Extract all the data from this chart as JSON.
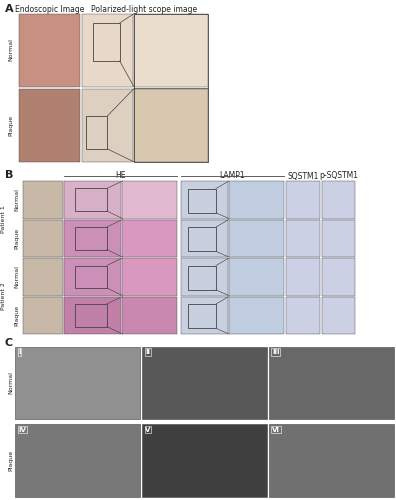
{
  "fig_width": 3.96,
  "fig_height": 5.0,
  "bg_color": "#ffffff",
  "panel_A": {
    "label": "A",
    "col_labels": [
      "Endoscopic Image",
      "Polarized-light scope image"
    ],
    "row_labels": [
      "Normal",
      "Plaque"
    ],
    "endo_normal_color": "#c89080",
    "endo_plaque_color": "#b08070",
    "polar_wide_normal_color": "#e8d8c8",
    "polar_wide_plaque_color": "#ddd0c0",
    "polar_zoom_normal_color": "#eaddcc",
    "polar_zoom_plaque_color": "#d8c8b0"
  },
  "panel_B": {
    "label": "B",
    "col_labels": [
      "HE",
      "LAMP1",
      "SQSTM1",
      "p-SQSTM1"
    ],
    "row_labels": [
      "Normal",
      "Plaque",
      "Normal",
      "Plaque"
    ],
    "patient_labels": [
      "Patient 1",
      "Patient 2"
    ],
    "biopsy_color": "#c8b8a8",
    "he_wide_colors": [
      "#d8b0c8",
      "#cc90b8",
      "#cc90b8",
      "#c080a8"
    ],
    "he_zoom_colors": [
      "#e0b8d0",
      "#d898c0",
      "#d898c0",
      "#c888b0"
    ],
    "lamp1_wide_color": "#c8d0e0",
    "lamp1_zoom_color": "#c0cce0",
    "sqstm1_color": "#ccd0e4",
    "psqstm1_color": "#ccd0e4"
  },
  "panel_C": {
    "label": "C",
    "row_labels": [
      "Normal",
      "Plaque"
    ],
    "panel_labels": [
      "I",
      "II",
      "III",
      "IV",
      "V",
      "VI"
    ],
    "normal_colors": [
      "#909090",
      "#585858",
      "#686868"
    ],
    "plaque_colors": [
      "#787878",
      "#404040",
      "#707070"
    ]
  },
  "border_color": "#444444",
  "text_color": "#222222",
  "font_size_bold": 8,
  "font_size_header": 5.5,
  "font_size_row": 4.5,
  "font_size_sub": 5
}
